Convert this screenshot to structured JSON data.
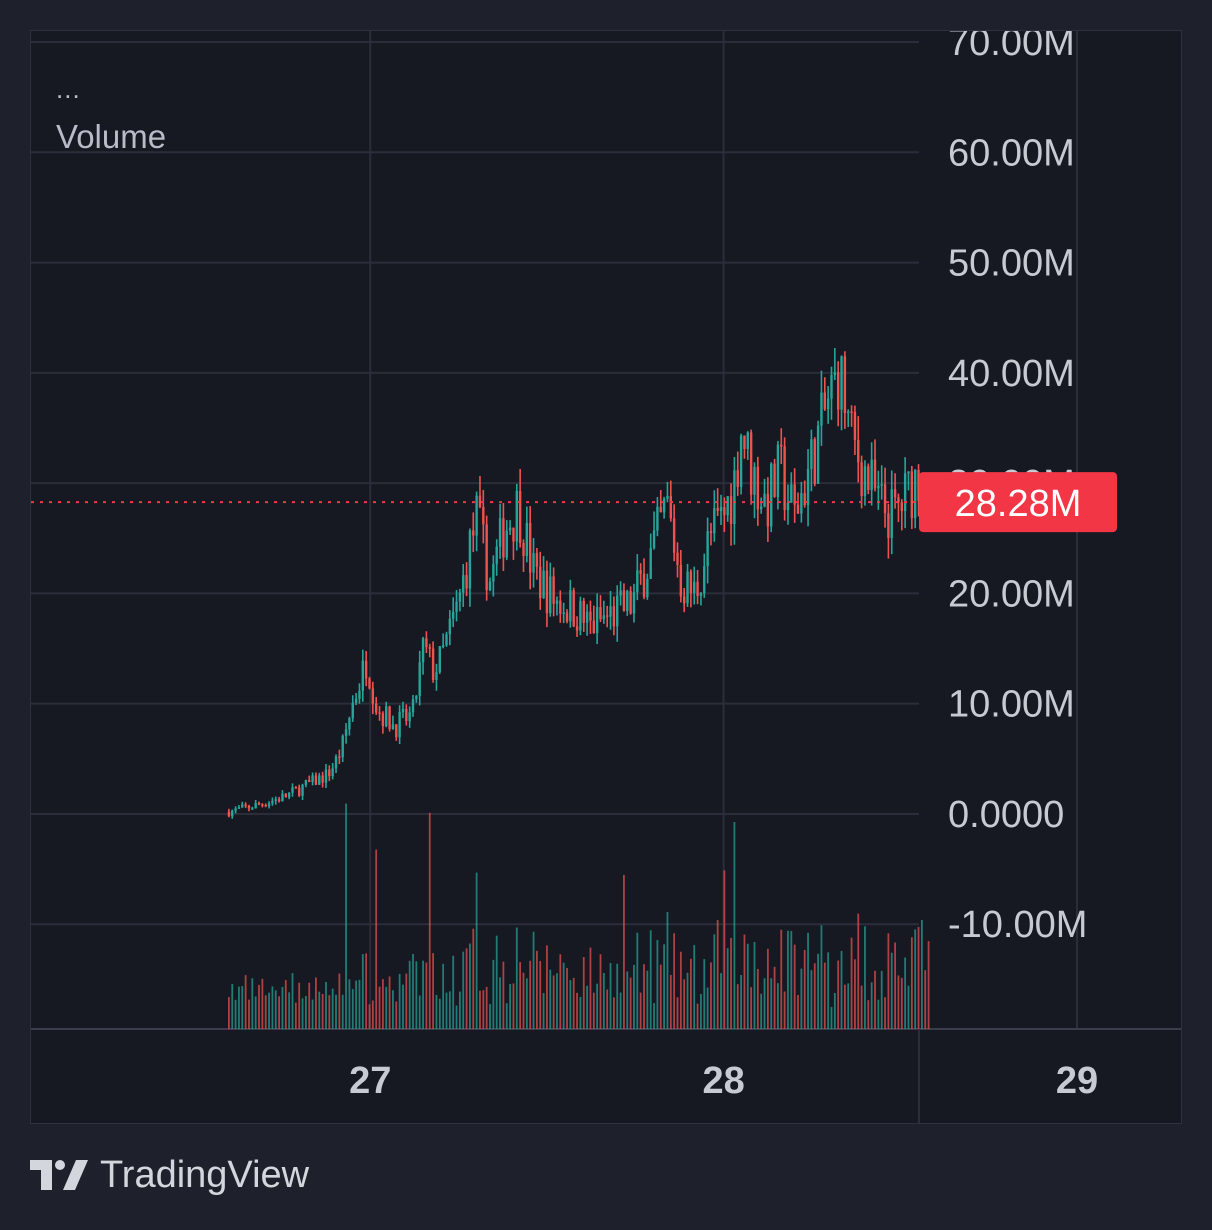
{
  "legend": {
    "dots": "...",
    "title": "Volume"
  },
  "footer": {
    "brand": "TradingView",
    "logo_icon": "tradingview-logo-icon"
  },
  "colors": {
    "background": "#1e202b",
    "pane": "#161822",
    "grid": "#2b2e3a",
    "up": "#26a69a",
    "down": "#ef5350",
    "axis_text": "#c8cad2",
    "price_line": "#f23645"
  },
  "chart_data": {
    "type": "candlestick",
    "title": "",
    "y_axis": {
      "ticks": [
        70000000,
        60000000,
        50000000,
        40000000,
        30000000,
        20000000,
        10000000,
        0,
        -10000000
      ],
      "tick_labels": [
        "70.00M",
        "60.00M",
        "50.00M",
        "40.00M",
        "30.00M",
        "20.00M",
        "10.00M",
        "0.0000",
        "-10.00M"
      ],
      "range": [
        -19500000,
        71000000
      ]
    },
    "x_axis": {
      "ticks": [
        27,
        28,
        29
      ],
      "tick_labels": [
        "27",
        "28",
        "29"
      ],
      "range": [
        26.04,
        29.3
      ]
    },
    "last_price": {
      "value": 28280000,
      "label": "28.28M"
    },
    "series": {
      "start": 26.6,
      "end": 28.58,
      "close_path": [
        [
          26.6,
          0.2
        ],
        [
          26.68,
          0.8
        ],
        [
          26.76,
          1.6
        ],
        [
          26.82,
          2.6
        ],
        [
          26.88,
          3.6
        ],
        [
          26.9,
          4.6
        ],
        [
          26.92,
          6.0
        ],
        [
          26.95,
          10.0
        ],
        [
          26.98,
          13.0
        ],
        [
          26.99,
          14.0
        ],
        [
          27.02,
          9.5
        ],
        [
          27.07,
          8.0
        ],
        [
          27.12,
          9.0
        ],
        [
          27.15,
          15.0
        ],
        [
          27.18,
          13.0
        ],
        [
          27.2,
          14.0
        ],
        [
          27.25,
          19.0
        ],
        [
          27.3,
          27.0
        ],
        [
          27.34,
          21.0
        ],
        [
          27.38,
          26.0
        ],
        [
          27.42,
          28.0
        ],
        [
          27.46,
          22.0
        ],
        [
          27.52,
          19.5
        ],
        [
          27.58,
          18.5
        ],
        [
          27.62,
          17.0
        ],
        [
          27.68,
          18.0
        ],
        [
          27.74,
          19.0
        ],
        [
          27.8,
          24.0
        ],
        [
          27.84,
          28.0
        ],
        [
          27.88,
          21.0
        ],
        [
          27.92,
          20.0
        ],
        [
          27.96,
          25.0
        ],
        [
          28.0,
          27.0
        ],
        [
          28.03,
          30.0
        ],
        [
          28.05,
          35.0
        ],
        [
          28.08,
          31.0
        ],
        [
          28.12,
          28.0
        ],
        [
          28.16,
          31.0
        ],
        [
          28.2,
          27.0
        ],
        [
          28.25,
          32.0
        ],
        [
          28.3,
          38.0
        ],
        [
          28.33,
          40.0
        ],
        [
          28.36,
          34.0
        ],
        [
          28.4,
          31.0
        ],
        [
          28.44,
          28.0
        ],
        [
          28.48,
          27.0
        ],
        [
          28.52,
          29.0
        ],
        [
          28.56,
          31.5
        ],
        [
          28.58,
          28.28
        ]
      ],
      "volume_spikes": [
        [
          26.93,
          0.98
        ],
        [
          27.17,
          0.94
        ],
        [
          28.03,
          0.9
        ],
        [
          27.3,
          0.68
        ],
        [
          28.0,
          0.69
        ],
        [
          27.02,
          0.78
        ],
        [
          27.72,
          0.67
        ]
      ]
    }
  }
}
